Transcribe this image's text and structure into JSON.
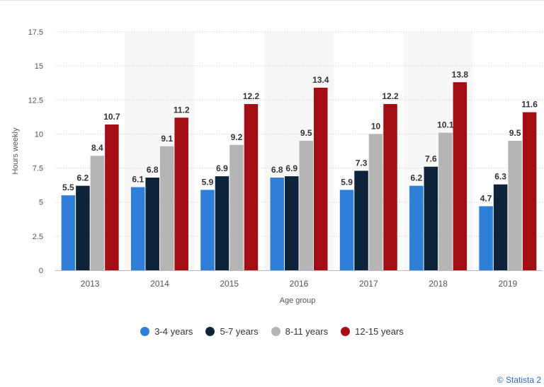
{
  "chart_data": {
    "type": "bar",
    "categories": [
      "2013",
      "2014",
      "2015",
      "2016",
      "2017",
      "2018",
      "2019"
    ],
    "series": [
      {
        "name": "3-4 years",
        "color": "#2f7ed8",
        "values": [
          5.5,
          6.1,
          5.9,
          6.8,
          5.9,
          6.2,
          4.7
        ]
      },
      {
        "name": "5-7 years",
        "color": "#0d233a",
        "values": [
          6.2,
          6.8,
          6.9,
          6.9,
          7.3,
          7.6,
          6.3
        ]
      },
      {
        "name": "8-11 years",
        "color": "#b5b5b5",
        "values": [
          8.4,
          9.1,
          9.2,
          9.5,
          10,
          10.1,
          9.5
        ]
      },
      {
        "name": "12-15 years",
        "color": "#a30d13",
        "values": [
          10.7,
          11.2,
          12.2,
          13.4,
          12.2,
          13.8,
          11.6
        ]
      }
    ],
    "xlabel": "Age group",
    "ylabel": "Hours weekly",
    "ylim": [
      0,
      17.5
    ],
    "yticks": [
      "0",
      "2.5",
      "5",
      "7.5",
      "10",
      "12.5",
      "15",
      "17.5"
    ],
    "grid": true,
    "legend_position": "bottom"
  },
  "credit": "© Statista 2"
}
